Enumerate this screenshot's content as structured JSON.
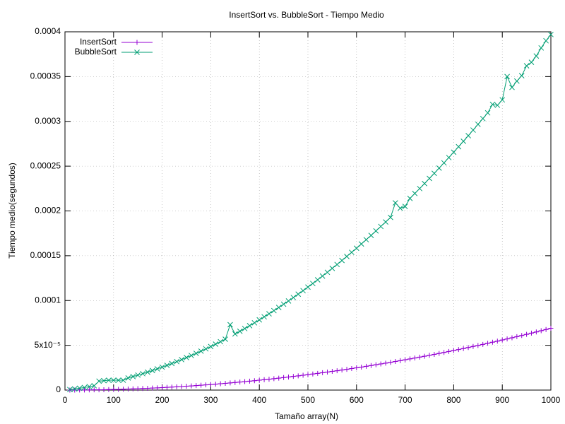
{
  "chart_data": {
    "type": "line",
    "title": "InsertSort vs. BubbleSort - Tiempo Medio",
    "xlabel": "Tamaño array(N)",
    "ylabel": "Tiempo medio(segundos)",
    "x": [
      10,
      20,
      30,
      40,
      50,
      60,
      70,
      80,
      90,
      100,
      110,
      120,
      130,
      140,
      150,
      160,
      170,
      180,
      190,
      200,
      210,
      220,
      230,
      240,
      250,
      260,
      270,
      280,
      290,
      300,
      310,
      320,
      330,
      340,
      350,
      360,
      370,
      380,
      390,
      400,
      410,
      420,
      430,
      440,
      450,
      460,
      470,
      480,
      490,
      500,
      510,
      520,
      530,
      540,
      550,
      560,
      570,
      580,
      590,
      600,
      610,
      620,
      630,
      640,
      650,
      660,
      670,
      680,
      690,
      700,
      710,
      720,
      730,
      740,
      750,
      760,
      770,
      780,
      790,
      800,
      810,
      820,
      830,
      840,
      850,
      860,
      870,
      880,
      890,
      900,
      910,
      920,
      930,
      940,
      950,
      960,
      970,
      980,
      990,
      1000
    ],
    "series": [
      {
        "name": "InsertSort",
        "color": "#9400d3",
        "marker": "plus",
        "values": [
          1e-08,
          3e-08,
          6e-08,
          1.1e-07,
          1.7e-07,
          2.5e-07,
          3.4e-07,
          4.4e-07,
          5.6e-07,
          6.9e-07,
          8.3e-07,
          9.9e-07,
          1.17e-06,
          1.35e-06,
          1.55e-06,
          1.77e-06,
          1.99e-06,
          2.24e-06,
          2.49e-06,
          2.76e-06,
          3.04e-06,
          3.34e-06,
          3.65e-06,
          3.97e-06,
          4.31e-06,
          4.66e-06,
          5.03e-06,
          5.41e-06,
          5.8e-06,
          6.21e-06,
          6.63e-06,
          7.07e-06,
          7.51e-06,
          7.98e-06,
          8.45e-06,
          8.94e-06,
          9.45e-06,
          9.96e-06,
          1.049e-05,
          1.104e-05,
          1.16e-05,
          1.217e-05,
          1.276e-05,
          1.336e-05,
          1.397e-05,
          1.46e-05,
          1.524e-05,
          1.59e-05,
          1.657e-05,
          1.725e-05,
          1.795e-05,
          1.866e-05,
          1.938e-05,
          2.012e-05,
          2.087e-05,
          2.164e-05,
          2.242e-05,
          2.321e-05,
          2.402e-05,
          2.484e-05,
          2.567e-05,
          2.652e-05,
          2.739e-05,
          2.826e-05,
          2.915e-05,
          3.006e-05,
          3.097e-05,
          3.191e-05,
          3.285e-05,
          3.381e-05,
          3.478e-05,
          3.577e-05,
          3.677e-05,
          3.778e-05,
          3.881e-05,
          3.985e-05,
          4.091e-05,
          4.198e-05,
          4.306e-05,
          4.416e-05,
          4.527e-05,
          4.64e-05,
          4.753e-05,
          4.869e-05,
          4.985e-05,
          5.103e-05,
          5.223e-05,
          5.343e-05,
          5.465e-05,
          5.589e-05,
          5.714e-05,
          5.84e-05,
          5.968e-05,
          6.097e-05,
          6.227e-05,
          6.359e-05,
          6.492e-05,
          6.627e-05,
          6.763e-05,
          6.9e-05
        ]
      },
      {
        "name": "BubbleSort",
        "color": "#009e73",
        "marker": "cross",
        "values": [
          6e-07,
          1.3e-06,
          2.1e-06,
          2.9e-06,
          3.9e-06,
          4.8e-06,
          1e-05,
          1.05e-05,
          1.1e-05,
          1.1e-05,
          1.1e-05,
          1.1e-05,
          1.35e-05,
          1.51e-05,
          1.67e-05,
          1.83e-05,
          2e-05,
          2.18e-05,
          2.37e-05,
          2.56e-05,
          2.76e-05,
          2.97e-05,
          3.18e-05,
          3.4e-05,
          3.63e-05,
          3.86e-05,
          4.1e-05,
          4.35e-05,
          4.6e-05,
          4.86e-05,
          5.13e-05,
          5.4e-05,
          5.68e-05,
          7.3e-05,
          6.27e-05,
          6.57e-05,
          6.87e-05,
          7.19e-05,
          7.51e-05,
          7.84e-05,
          8.18e-05,
          8.52e-05,
          8.87e-05,
          9.22e-05,
          9.59e-05,
          9.95e-05,
          0.0001033,
          0.0001071,
          0.000111,
          0.000115,
          0.000119,
          0.0001231,
          0.0001273,
          0.0001315,
          0.0001359,
          0.0001402,
          0.0001447,
          0.0001492,
          0.0001538,
          0.0001584,
          0.0001631,
          0.0001679,
          0.0001727,
          0.0001777,
          0.0001827,
          0.0001877,
          0.0001928,
          0.000209,
          0.000203,
          0.000205,
          0.000214,
          0.0002195,
          0.000225,
          0.0002306,
          0.0002363,
          0.000242,
          0.0002478,
          0.0002537,
          0.0002596,
          0.0002656,
          0.0002717,
          0.0002778,
          0.000284,
          0.0002903,
          0.0002967,
          0.0003031,
          0.0003095,
          0.000319,
          0.000318,
          0.000324,
          0.00035,
          0.000338,
          0.000345,
          0.000351,
          0.000362,
          0.000366,
          0.000373,
          0.000382,
          0.00039,
          0.000397
        ]
      }
    ],
    "xlim": [
      0,
      1000
    ],
    "xticks": [
      0,
      100,
      200,
      300,
      400,
      500,
      600,
      700,
      800,
      900,
      1000
    ],
    "ylim": [
      0,
      0.0004
    ],
    "yticks": [
      0,
      {
        "value": 5e-05,
        "label": "5x10⁻⁵"
      },
      0.0001,
      0.00015,
      0.0002,
      0.00025,
      0.0003,
      0.00035,
      0.0004
    ],
    "grid": true,
    "legend": "top-left"
  }
}
